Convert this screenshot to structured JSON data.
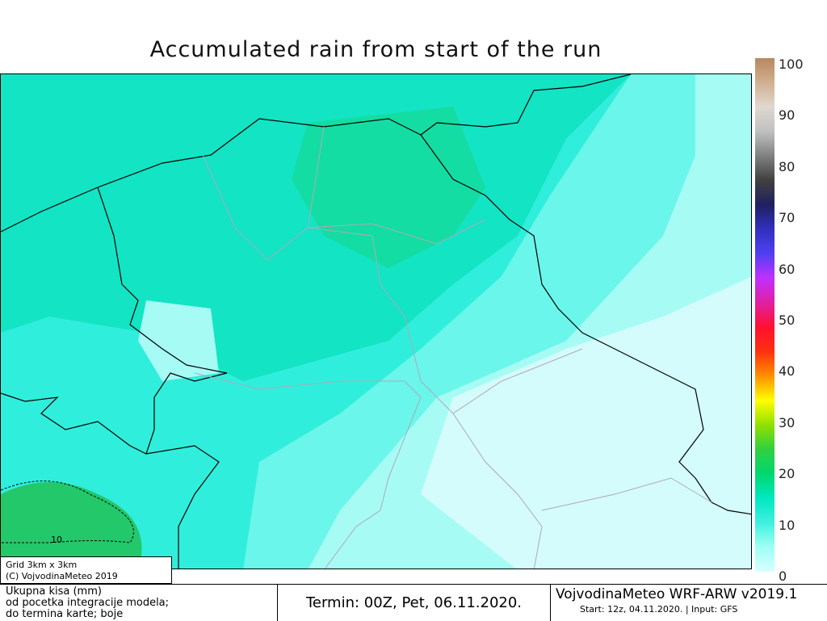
{
  "title": "Accumulated rain from start of the run",
  "colorbar": {
    "ticks": [
      "100",
      "90",
      "80",
      "70",
      "60",
      "50",
      "40",
      "30",
      "20",
      "10",
      "0"
    ],
    "colors": [
      "#d8ffff",
      "#a0fff4",
      "#40f0e0",
      "#00e8c0",
      "#00d870",
      "#30d040",
      "#90e000",
      "#ffff00",
      "#ff9000",
      "#ff3010",
      "#ff1030",
      "#e020a0",
      "#c030ff",
      "#5040f0",
      "#3030c0",
      "#202060",
      "#404040",
      "#808080",
      "#c0c0c0",
      "#e0d8d0",
      "#d0b090",
      "#b88860"
    ],
    "unit": "mm"
  },
  "map": {
    "contour_label": "10",
    "colors": {
      "light": "#d4fcfc",
      "pale": "#a6fcf4",
      "aqua": "#6af6ea",
      "cyan": "#30eedc",
      "teal": "#12e4c4",
      "green": "#14d88c",
      "dark_green": "#22c86a"
    }
  },
  "gridbox": {
    "line1": "Grid 3km x 3km",
    "line2": "(C) VojvodinaMeteo 2019"
  },
  "footer": {
    "desc1": "Ukupna kisa (mm)",
    "desc2": "od pocetka integracije modela;",
    "desc3": "do termina karte; boje",
    "termin": "Termin: 00Z, Pet, 06.11.2020.",
    "model": "VojvodinaMeteo WRF-ARW v2019.1",
    "start": "Start: 12z, 04.11.2020. | Input: GFS"
  }
}
